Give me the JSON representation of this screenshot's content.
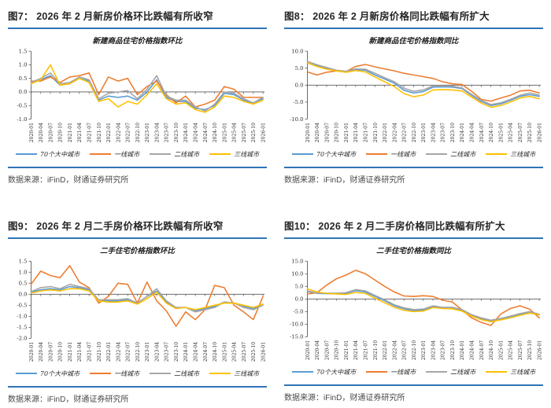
{
  "colors": {
    "accent_blue": "#2E74B5",
    "heading_text": "#262626",
    "source_text": "#4a4a4a",
    "axis_line": "#595959",
    "axis_text": "#333333",
    "series_blue": "#5B9BD5",
    "series_orange": "#ED7D31",
    "series_gray": "#A6A6A6",
    "series_yellow": "#FFC000"
  },
  "figures": [
    {
      "heading": "图7：  2026 年 2 月新房价格环比跌幅有所收窄",
      "source": "数据来源：iFinD，财通证券研究所"
    },
    {
      "heading": "图8：  2026 年 2 月新房价格同比跌幅有所扩大",
      "source": "数据来源：iFinD，财通证券研究所"
    },
    {
      "heading": "图9：  2026 年 2 月二手房价格环比跌幅有所收窄",
      "source": "数据来源：iFinD，财通证券研究所"
    },
    {
      "heading": "图10：  2026 年 2 月二手房价格同比跌幅有所扩大",
      "source": "数据来源：iFinD，财通证券研究所"
    }
  ],
  "chart_data": [
    {
      "type": "line",
      "title": "新建商品住宅价格指数环比",
      "x": [
        "2020-01",
        "2020-04",
        "2020-07",
        "2020-10",
        "2021-01",
        "2021-04",
        "2021-07",
        "2021-10",
        "2022-01",
        "2022-04",
        "2022-07",
        "2022-10",
        "2023-01",
        "2023-04",
        "2023-07",
        "2023-10",
        "2024-01",
        "2024-04",
        "2024-07",
        "2024-10",
        "2025-01",
        "2025-04",
        "2025-07",
        "2025-10",
        "2026-01"
      ],
      "ylim": [
        -1.0,
        1.5
      ],
      "yticks": [
        "1.5",
        "1.0",
        "0.5",
        "0.0",
        "-0.5",
        "-1.0"
      ],
      "legend_position": "bottom",
      "grid": false,
      "series": [
        {
          "name": "70个大中城市",
          "color": "#5B9BD5",
          "values": [
            0.35,
            0.45,
            0.6,
            0.25,
            0.3,
            0.5,
            0.4,
            -0.3,
            -0.15,
            -0.2,
            -0.15,
            -0.3,
            0.0,
            0.45,
            -0.2,
            -0.35,
            -0.35,
            -0.6,
            -0.65,
            -0.5,
            -0.05,
            -0.1,
            -0.3,
            -0.4,
            -0.25
          ]
        },
        {
          "name": "一线城市",
          "color": "#ED7D31",
          "values": [
            0.4,
            0.4,
            0.55,
            0.35,
            0.55,
            0.6,
            0.7,
            -0.1,
            0.55,
            0.4,
            0.5,
            -0.1,
            0.2,
            0.4,
            -0.1,
            -0.4,
            -0.15,
            -0.55,
            -0.45,
            -0.3,
            0.2,
            0.1,
            -0.2,
            -0.2,
            -0.2
          ]
        },
        {
          "name": "二线城市",
          "color": "#A6A6A6",
          "values": [
            0.35,
            0.5,
            0.7,
            0.3,
            0.35,
            0.55,
            0.45,
            -0.25,
            -0.05,
            0.0,
            0.05,
            -0.25,
            0.1,
            0.6,
            -0.15,
            -0.3,
            -0.3,
            -0.55,
            -0.7,
            -0.45,
            0.0,
            -0.05,
            -0.25,
            -0.4,
            -0.2
          ]
        },
        {
          "name": "三线城市",
          "color": "#FFC000",
          "values": [
            0.3,
            0.45,
            1.0,
            0.25,
            0.3,
            0.5,
            0.35,
            -0.35,
            -0.25,
            -0.55,
            -0.35,
            -0.45,
            -0.1,
            0.3,
            -0.25,
            -0.45,
            -0.4,
            -0.65,
            -0.75,
            -0.55,
            -0.15,
            -0.2,
            -0.35,
            -0.45,
            -0.3
          ]
        }
      ]
    },
    {
      "type": "line",
      "title": "新建商品住宅价格指数同比",
      "x": [
        "2020-01",
        "2020-04",
        "2020-07",
        "2020-10",
        "2021-01",
        "2021-04",
        "2021-07",
        "2021-10",
        "2022-01",
        "2022-04",
        "2022-07",
        "2022-10",
        "2023-01",
        "2023-04",
        "2023-07",
        "2023-10",
        "2024-01",
        "2024-04",
        "2024-07",
        "2024-10",
        "2025-01",
        "2025-04",
        "2025-07",
        "2025-10",
        "2026-01"
      ],
      "ylim": [
        -10.0,
        10.0
      ],
      "yticks": [
        "10.0",
        "5.0",
        "0.0",
        "-5.0",
        "-10.0"
      ],
      "legend_position": "bottom",
      "grid": false,
      "series": [
        {
          "name": "70个大中城市",
          "color": "#5B9BD5",
          "values": [
            6.5,
            5.8,
            5.0,
            4.3,
            4.0,
            4.6,
            4.4,
            3.0,
            1.8,
            0.6,
            -1.5,
            -2.3,
            -1.9,
            -0.6,
            -0.5,
            -0.6,
            -1.0,
            -3.0,
            -4.8,
            -6.0,
            -5.5,
            -4.5,
            -3.3,
            -2.8,
            -3.3
          ]
        },
        {
          "name": "一线城市",
          "color": "#ED7D31",
          "values": [
            3.9,
            3.0,
            3.8,
            4.2,
            4.0,
            5.5,
            6.1,
            5.4,
            4.8,
            4.2,
            3.5,
            3.0,
            2.5,
            2.0,
            1.0,
            0.4,
            0.2,
            -1.8,
            -4.2,
            -4.7,
            -3.8,
            -3.0,
            -1.7,
            -1.5,
            -2.3
          ]
        },
        {
          "name": "二线城市",
          "color": "#A6A6A6",
          "values": [
            7.0,
            6.0,
            5.2,
            4.4,
            4.1,
            4.8,
            4.7,
            3.5,
            2.2,
            1.0,
            -0.9,
            -1.8,
            -1.4,
            -0.2,
            -0.2,
            -0.3,
            -0.8,
            -2.7,
            -4.5,
            -5.7,
            -5.2,
            -4.2,
            -3.0,
            -2.3,
            -2.9
          ]
        },
        {
          "name": "三线城市",
          "color": "#FFC000",
          "values": [
            6.6,
            5.5,
            4.7,
            4.2,
            3.8,
            4.3,
            3.9,
            2.4,
            1.0,
            -0.4,
            -2.5,
            -3.4,
            -2.9,
            -1.4,
            -1.3,
            -1.4,
            -1.7,
            -3.5,
            -5.3,
            -6.5,
            -6.0,
            -5.0,
            -3.8,
            -3.3,
            -4.0
          ]
        }
      ]
    },
    {
      "type": "line",
      "title": "二手住宅价格指数环比",
      "x": [
        "2020-01",
        "2020-04",
        "2020-07",
        "2020-10",
        "2021-01",
        "2021-04",
        "2021-07",
        "2021-10",
        "2022-01",
        "2022-04",
        "2022-07",
        "2022-10",
        "2023-01",
        "2023-04",
        "2023-07",
        "2023-10",
        "2024-01",
        "2024-04",
        "2024-07",
        "2024-10",
        "2025-01",
        "2025-04",
        "2025-07",
        "2025-10",
        "2026-01"
      ],
      "ylim": [
        -2.0,
        1.5
      ],
      "yticks": [
        "1.5",
        "1.0",
        "0.5",
        "0.0",
        "-0.5",
        "-1.0",
        "-1.5",
        "-2.0"
      ],
      "legend_position": "bottom",
      "grid": false,
      "series": [
        {
          "name": "70个大中城市",
          "color": "#5B9BD5",
          "values": [
            0.1,
            0.2,
            0.25,
            0.2,
            0.35,
            0.3,
            0.2,
            -0.3,
            -0.3,
            -0.3,
            -0.25,
            -0.4,
            -0.1,
            0.15,
            -0.35,
            -0.6,
            -0.6,
            -0.75,
            -0.65,
            -0.55,
            -0.35,
            -0.4,
            -0.55,
            -0.65,
            -0.45
          ]
        },
        {
          "name": "一线城市",
          "color": "#ED7D31",
          "values": [
            0.45,
            1.05,
            0.85,
            0.75,
            1.3,
            0.55,
            0.3,
            -0.4,
            -0.1,
            0.5,
            0.45,
            -0.4,
            0.55,
            -0.3,
            -0.75,
            -1.45,
            -0.8,
            -1.15,
            -0.7,
            0.4,
            0.3,
            -0.5,
            -0.8,
            -1.15,
            -0.1
          ]
        },
        {
          "name": "二线城市",
          "color": "#A6A6A6",
          "values": [
            0.12,
            0.3,
            0.35,
            0.25,
            0.45,
            0.35,
            0.25,
            -0.25,
            -0.25,
            -0.25,
            -0.2,
            -0.4,
            -0.1,
            0.25,
            -0.3,
            -0.6,
            -0.6,
            -0.8,
            -0.7,
            -0.6,
            -0.35,
            -0.4,
            -0.6,
            -0.7,
            -0.5
          ]
        },
        {
          "name": "三线城市",
          "color": "#FFC000",
          "values": [
            0.05,
            0.15,
            0.2,
            0.15,
            0.25,
            0.25,
            0.15,
            -0.3,
            -0.35,
            -0.35,
            -0.3,
            -0.45,
            -0.2,
            0.1,
            -0.4,
            -0.65,
            -0.6,
            -0.7,
            -0.6,
            -0.5,
            -0.4,
            -0.4,
            -0.5,
            -0.6,
            -0.45
          ]
        }
      ]
    },
    {
      "type": "line",
      "title": "二手住宅价格指数同比",
      "x": [
        "2020-01",
        "2020-04",
        "2020-07",
        "2020-10",
        "2021-01",
        "2021-04",
        "2021-07",
        "2021-10",
        "2022-01",
        "2022-04",
        "2022-07",
        "2022-10",
        "2023-01",
        "2023-04",
        "2023-07",
        "2023-10",
        "2024-01",
        "2024-04",
        "2024-07",
        "2024-10",
        "2025-01",
        "2025-04",
        "2025-07",
        "2025-10",
        "2026-01"
      ],
      "ylim": [
        -15.0,
        15.0
      ],
      "yticks": [
        "15.0",
        "10.0",
        "5.0",
        "0.0",
        "-5.0",
        "-10.0",
        "-15.0"
      ],
      "legend_position": "bottom",
      "grid": false,
      "series": [
        {
          "name": "70个大中城市",
          "color": "#5B9BD5",
          "values": [
            3.0,
            2.2,
            2.1,
            2.1,
            2.2,
            3.3,
            2.8,
            1.0,
            -0.7,
            -2.7,
            -3.9,
            -4.6,
            -4.4,
            -3.0,
            -3.6,
            -3.6,
            -4.5,
            -6.5,
            -7.8,
            -8.7,
            -8.0,
            -7.2,
            -6.2,
            -5.4,
            -6.3
          ]
        },
        {
          "name": "一线城市",
          "color": "#ED7D31",
          "values": [
            2.0,
            2.5,
            5.5,
            8.0,
            9.5,
            11.4,
            10.0,
            7.5,
            5.0,
            2.8,
            1.2,
            1.0,
            1.3,
            1.0,
            -0.5,
            -1.2,
            -4.3,
            -7.5,
            -9.3,
            -10.5,
            -6.0,
            -3.8,
            -2.7,
            -4.0,
            -7.5
          ]
        },
        {
          "name": "二线城市",
          "color": "#A6A6A6",
          "values": [
            3.2,
            2.4,
            2.3,
            2.3,
            2.5,
            3.7,
            3.2,
            1.4,
            -0.3,
            -2.3,
            -3.5,
            -4.2,
            -4.0,
            -2.7,
            -3.3,
            -3.3,
            -4.2,
            -6.2,
            -7.5,
            -8.4,
            -7.7,
            -6.8,
            -5.8,
            -5.0,
            -6.0
          ]
        },
        {
          "name": "三线城市",
          "color": "#FFC000",
          "values": [
            4.0,
            2.8,
            2.2,
            2.0,
            1.8,
            2.6,
            2.2,
            0.3,
            -1.5,
            -3.3,
            -4.5,
            -5.0,
            -4.8,
            -3.4,
            -3.8,
            -3.9,
            -4.8,
            -6.8,
            -8.2,
            -9.0,
            -8.3,
            -7.5,
            -6.5,
            -5.6,
            -6.2
          ]
        }
      ]
    }
  ]
}
